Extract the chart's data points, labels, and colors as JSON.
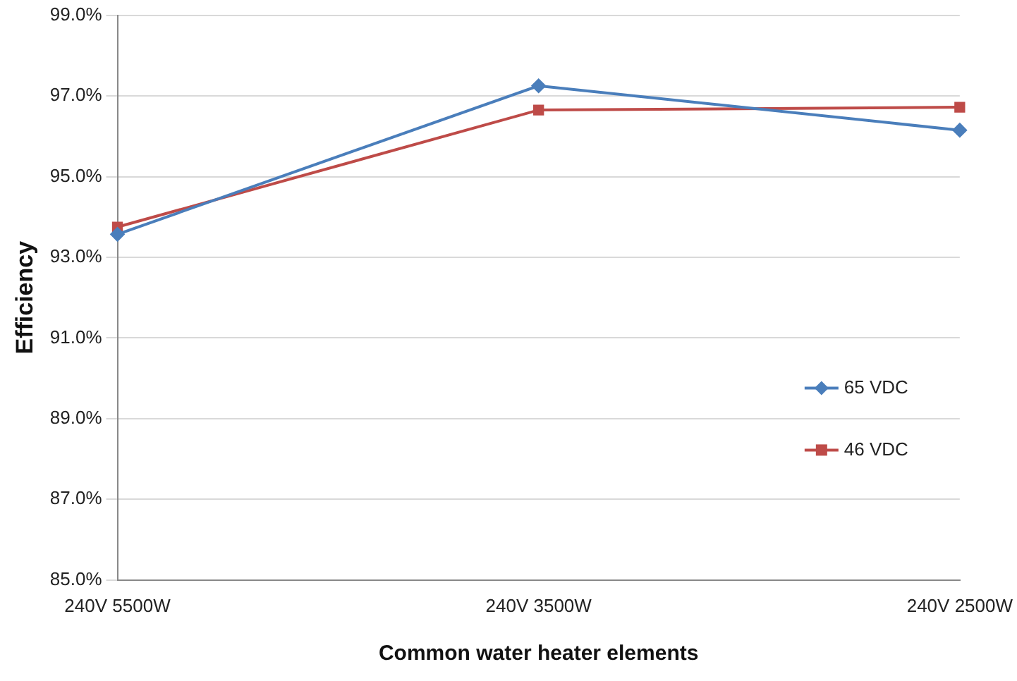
{
  "chart_data": {
    "type": "line",
    "xlabel": "Common water heater elements",
    "ylabel": "Efficiency",
    "categories": [
      "240V 5500W",
      "240V 3500W",
      "240V 2500W"
    ],
    "series": [
      {
        "name": "65 VDC",
        "color": "#4a7ebb",
        "marker": "diamond",
        "values": [
          93.57,
          97.25,
          96.15
        ]
      },
      {
        "name": "46 VDC",
        "color": "#be4b48",
        "marker": "square",
        "values": [
          93.75,
          96.65,
          96.72
        ]
      }
    ],
    "ylim": [
      85,
      99
    ],
    "yticks": [
      {
        "value": 85,
        "label": "85.0%"
      },
      {
        "value": 87,
        "label": "87.0%"
      },
      {
        "value": 89,
        "label": "89.0%"
      },
      {
        "value": 91,
        "label": "91.0%"
      },
      {
        "value": 93,
        "label": "93.0%"
      },
      {
        "value": 95,
        "label": "95.0%"
      },
      {
        "value": 97,
        "label": "97.0%"
      },
      {
        "value": 99,
        "label": "99.0%"
      }
    ],
    "grid": "y",
    "legend": "right",
    "line_style": "solid"
  }
}
